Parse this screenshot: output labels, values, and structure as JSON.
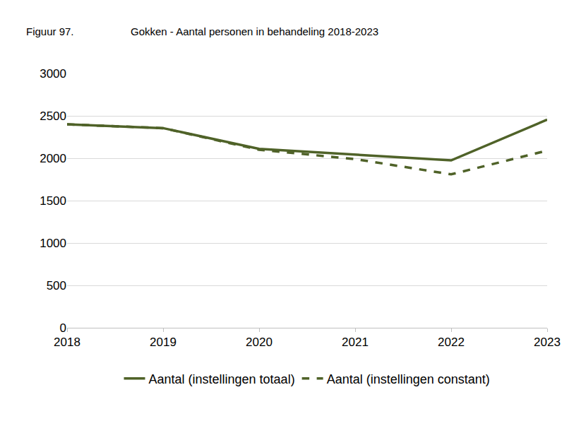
{
  "chart_data": {
    "type": "line",
    "title": "Gokken - Aantal personen in behandeling 2018-2023",
    "annotations": [
      "Figuur 97."
    ],
    "categories": [
      "2018",
      "2019",
      "2020",
      "2021",
      "2022",
      "2023"
    ],
    "series": [
      {
        "name": "Aantal (instellingen totaal)",
        "color": "#4f6228",
        "line_style": "solid",
        "values": [
          2400,
          2355,
          2110,
          2045,
          1975,
          2455
        ]
      },
      {
        "name": "Aantal (instellingen constant)",
        "color": "#4f6228",
        "line_style": "dash",
        "values": [
          2400,
          2355,
          2100,
          1990,
          1810,
          2090
        ]
      }
    ],
    "ylim": [
      0,
      3000
    ],
    "yticks": [
      0,
      500,
      1000,
      1500,
      2000,
      2500,
      3000
    ],
    "grid": true,
    "legend": "bottom"
  }
}
